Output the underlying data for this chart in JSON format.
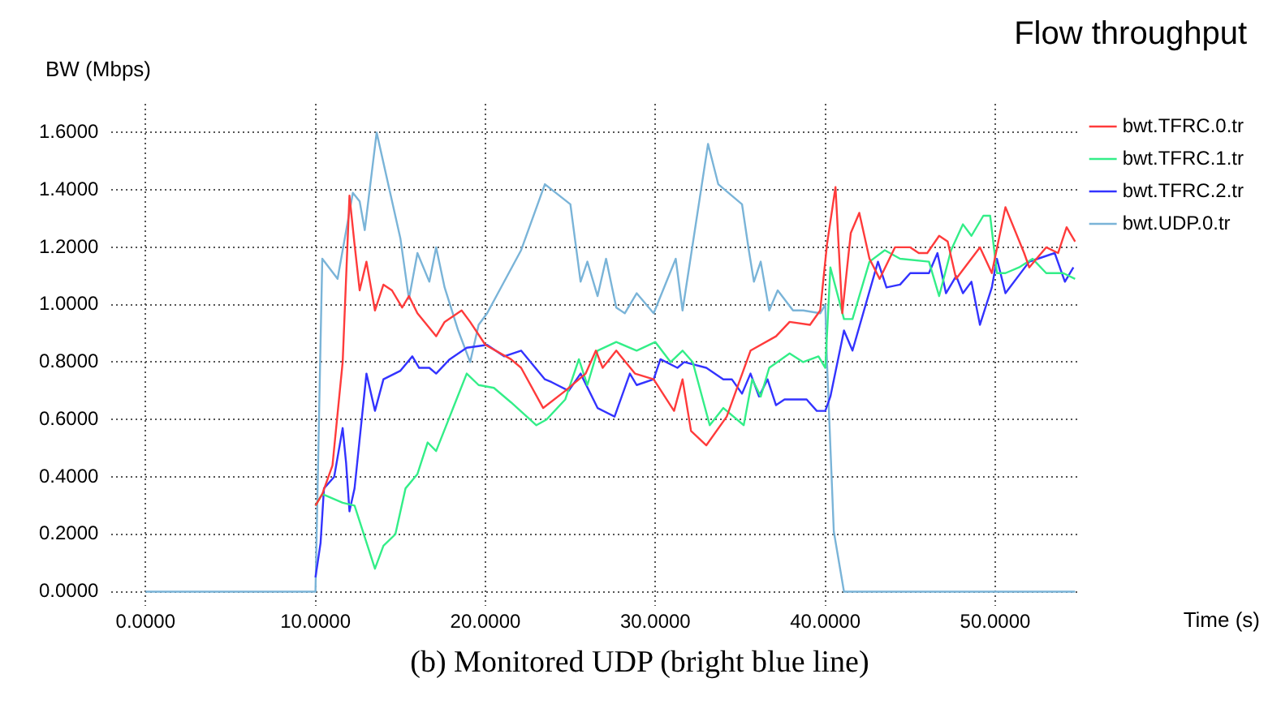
{
  "chart_data": {
    "type": "line",
    "title": "Flow throughput",
    "xlabel": "Time (s)",
    "ylabel": "BW (Mbps)",
    "annotations": [
      "(b) Monitored UDP (bright blue line)"
    ],
    "xlim": [
      -2,
      55
    ],
    "xticks": [
      {
        "value": 0,
        "label": "0.0000"
      },
      {
        "value": 10,
        "label": "10.0000"
      },
      {
        "value": 20,
        "label": "20.0000"
      },
      {
        "value": 30,
        "label": "30.0000"
      },
      {
        "value": 40,
        "label": "40.0000"
      },
      {
        "value": 50,
        "label": "50.0000"
      }
    ],
    "ylim": [
      -0.05,
      1.7
    ],
    "yticks": [
      {
        "value": 0,
        "label": "0.0000"
      },
      {
        "value": 0.2,
        "label": "0.2000"
      },
      {
        "value": 0.4,
        "label": "0.4000"
      },
      {
        "value": 0.6,
        "label": "0.6000"
      },
      {
        "value": 0.8,
        "label": "0.8000"
      },
      {
        "value": 1.0,
        "label": "1.0000"
      },
      {
        "value": 1.2,
        "label": "1.2000"
      },
      {
        "value": 1.4,
        "label": "1.4000"
      },
      {
        "value": 1.6,
        "label": "1.6000"
      }
    ],
    "grid": true,
    "legend": "right",
    "marker": "none",
    "line_style": "solid",
    "series": [
      {
        "name": "bwt.TFRC.0.tr",
        "color": "#ff3b3b",
        "x": [
          10.0,
          10.4,
          11.0,
          11.6,
          12.0,
          12.3,
          12.6,
          13.0,
          13.5,
          14.0,
          14.5,
          15.1,
          15.5,
          16.0,
          17.1,
          17.6,
          18.6,
          19.1,
          20.0,
          21.5,
          22.1,
          23.4,
          24.7,
          25.9,
          26.5,
          26.9,
          27.7,
          28.8,
          29.9,
          31.1,
          31.6,
          32.1,
          33.0,
          34.2,
          35.6,
          37.1,
          37.9,
          39.1,
          39.7,
          40.1,
          40.6,
          41.0,
          41.5,
          42.0,
          42.6,
          43.2,
          44.1,
          45.0,
          45.5,
          46.0,
          46.7,
          47.2,
          47.7,
          49.1,
          49.8,
          50.6,
          51.7,
          52.0,
          53.0,
          53.7,
          54.2,
          54.7
        ],
        "values": [
          0.3,
          0.34,
          0.44,
          0.8,
          1.38,
          1.21,
          1.05,
          1.15,
          0.98,
          1.07,
          1.05,
          0.99,
          1.03,
          0.97,
          0.89,
          0.94,
          0.98,
          0.94,
          0.86,
          0.81,
          0.78,
          0.64,
          0.7,
          0.76,
          0.84,
          0.78,
          0.84,
          0.76,
          0.74,
          0.63,
          0.74,
          0.56,
          0.51,
          0.61,
          0.84,
          0.89,
          0.94,
          0.93,
          0.98,
          1.21,
          1.41,
          0.97,
          1.25,
          1.32,
          1.16,
          1.09,
          1.2,
          1.2,
          1.18,
          1.18,
          1.24,
          1.22,
          1.09,
          1.2,
          1.11,
          1.34,
          1.18,
          1.13,
          1.2,
          1.18,
          1.27,
          1.22
        ]
      },
      {
        "name": "bwt.TFRC.1.tr",
        "color": "#33ee88",
        "x": [
          10.0,
          10.4,
          11.6,
          12.3,
          13.5,
          14.0,
          14.7,
          15.3,
          16.0,
          16.6,
          17.1,
          18.1,
          18.9,
          19.6,
          20.5,
          21.5,
          23.0,
          23.6,
          24.7,
          25.5,
          26.0,
          26.6,
          27.7,
          28.9,
          30.0,
          30.9,
          31.6,
          32.2,
          33.2,
          34.0,
          35.2,
          35.7,
          36.2,
          36.7,
          37.9,
          38.7,
          39.6,
          40.0,
          40.3,
          41.1,
          41.6,
          42.6,
          43.5,
          44.4,
          46.1,
          46.7,
          47.4,
          48.1,
          48.6,
          49.3,
          49.7,
          50.1,
          50.6,
          51.4,
          52.2,
          53.0,
          54.0,
          54.7
        ],
        "values": [
          0.3,
          0.34,
          0.31,
          0.3,
          0.08,
          0.16,
          0.2,
          0.36,
          0.41,
          0.52,
          0.49,
          0.64,
          0.76,
          0.72,
          0.71,
          0.66,
          0.58,
          0.6,
          0.67,
          0.81,
          0.72,
          0.84,
          0.87,
          0.84,
          0.87,
          0.8,
          0.84,
          0.8,
          0.58,
          0.64,
          0.58,
          0.74,
          0.68,
          0.78,
          0.83,
          0.8,
          0.82,
          0.78,
          1.13,
          0.95,
          0.95,
          1.15,
          1.19,
          1.16,
          1.15,
          1.03,
          1.19,
          1.28,
          1.24,
          1.31,
          1.31,
          1.11,
          1.11,
          1.13,
          1.16,
          1.11,
          1.11,
          1.09
        ]
      },
      {
        "name": "bwt.TFRC.2.tr",
        "color": "#3333ff",
        "x": [
          10.0,
          10.3,
          10.5,
          11.1,
          11.6,
          11.8,
          12.0,
          12.3,
          13.0,
          13.5,
          14.0,
          15.0,
          15.7,
          16.1,
          16.7,
          17.1,
          17.9,
          18.9,
          20.1,
          21.1,
          22.1,
          23.5,
          23.9,
          24.9,
          25.6,
          26.6,
          27.6,
          28.5,
          28.9,
          29.9,
          30.3,
          31.3,
          31.7,
          33.0,
          34.0,
          34.5,
          35.1,
          35.6,
          36.1,
          36.6,
          37.1,
          37.6,
          38.9,
          39.5,
          40.0,
          40.3,
          41.1,
          41.6,
          43.1,
          43.6,
          44.4,
          45.0,
          46.1,
          46.6,
          47.1,
          47.7,
          48.1,
          48.6,
          49.1,
          49.8,
          50.1,
          50.6,
          52.0,
          53.5,
          54.1,
          54.6
        ],
        "values": [
          0.05,
          0.17,
          0.36,
          0.4,
          0.57,
          0.45,
          0.28,
          0.36,
          0.76,
          0.63,
          0.74,
          0.77,
          0.82,
          0.78,
          0.78,
          0.76,
          0.81,
          0.85,
          0.86,
          0.82,
          0.84,
          0.74,
          0.73,
          0.7,
          0.76,
          0.64,
          0.61,
          0.76,
          0.72,
          0.74,
          0.81,
          0.78,
          0.8,
          0.78,
          0.74,
          0.74,
          0.69,
          0.76,
          0.68,
          0.74,
          0.65,
          0.67,
          0.67,
          0.63,
          0.63,
          0.68,
          0.91,
          0.84,
          1.15,
          1.06,
          1.07,
          1.11,
          1.11,
          1.18,
          1.04,
          1.1,
          1.04,
          1.08,
          0.93,
          1.06,
          1.16,
          1.04,
          1.15,
          1.18,
          1.08,
          1.13
        ]
      },
      {
        "name": "bwt.UDP.0.tr",
        "color": "#7ab4d8",
        "x": [
          0,
          10.0,
          10.4,
          11.3,
          12.2,
          12.6,
          12.9,
          13.6,
          15.0,
          15.5,
          16.0,
          16.7,
          17.1,
          17.6,
          18.4,
          19.1,
          19.6,
          20.1,
          22.1,
          23.5,
          25.0,
          25.6,
          26.0,
          26.6,
          27.1,
          27.7,
          28.2,
          28.9,
          29.9,
          31.2,
          31.6,
          33.1,
          33.7,
          35.1,
          35.5,
          35.8,
          36.2,
          36.7,
          37.2,
          38.1,
          38.7,
          39.7,
          40.0,
          40.1,
          40.5,
          41.1,
          54.7
        ],
        "values": [
          0,
          0,
          1.16,
          1.09,
          1.39,
          1.36,
          1.26,
          1.6,
          1.23,
          1.02,
          1.18,
          1.08,
          1.2,
          1.06,
          0.91,
          0.8,
          0.93,
          0.97,
          1.19,
          1.42,
          1.35,
          1.08,
          1.15,
          1.03,
          1.16,
          0.99,
          0.97,
          1.04,
          0.97,
          1.16,
          0.98,
          1.56,
          1.42,
          1.35,
          1.19,
          1.08,
          1.15,
          0.98,
          1.05,
          0.98,
          0.98,
          0.97,
          1.0,
          0.8,
          0.21,
          0,
          0
        ]
      }
    ]
  }
}
